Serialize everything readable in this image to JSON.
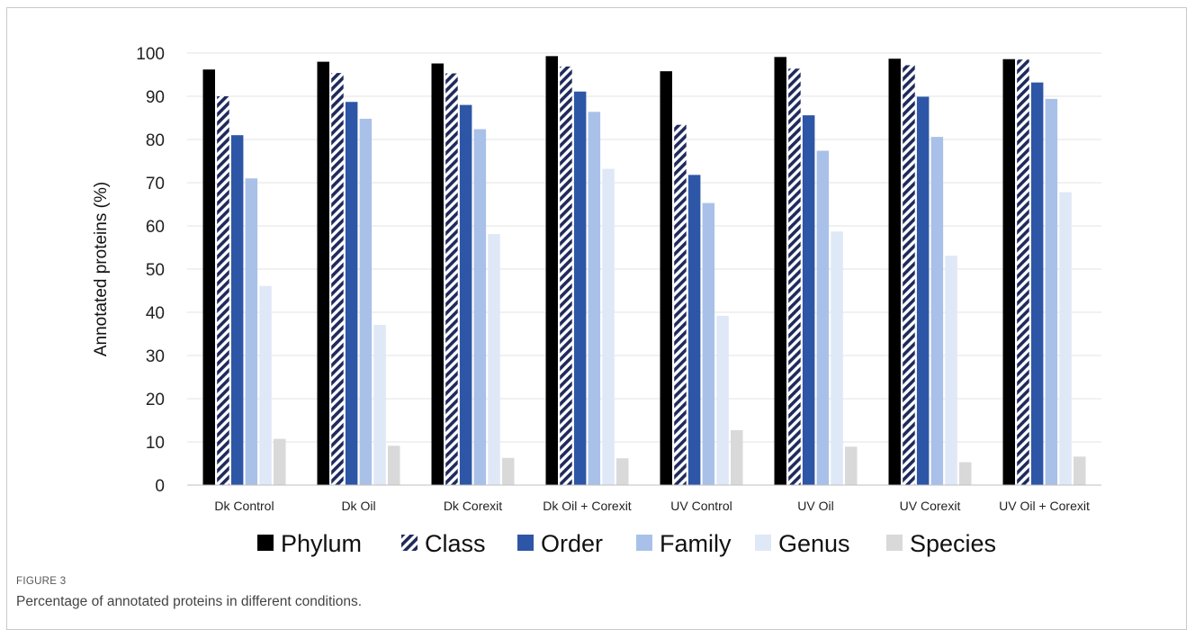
{
  "figure": {
    "label": "FIGURE 3",
    "caption": "Percentage of annotated proteins in different conditions."
  },
  "chart_data": {
    "type": "bar",
    "title": "",
    "xlabel": "",
    "ylabel": "Annotated proteins (%)",
    "ylim": [
      0,
      100
    ],
    "yticks": [
      0,
      10,
      20,
      30,
      40,
      50,
      60,
      70,
      80,
      90,
      100
    ],
    "grid": true,
    "legend_position": "bottom",
    "categories": [
      "Dk Control",
      "Dk Oil",
      "Dk Corexit",
      "Dk Oil + Corexit",
      "UV Control",
      "UV Oil",
      "UV Corexit",
      "UV Oil + Corexit"
    ],
    "series": [
      {
        "name": "Phylum",
        "color": "#000000",
        "pattern": "solid",
        "values": [
          96.2,
          98.0,
          97.6,
          99.3,
          95.8,
          99.1,
          98.7,
          98.6
        ]
      },
      {
        "name": "Class",
        "color": "#1f2a5c",
        "pattern": "diagonal-stripes",
        "values": [
          90.0,
          95.4,
          95.3,
          96.9,
          83.4,
          96.4,
          97.2,
          98.5
        ]
      },
      {
        "name": "Order",
        "color": "#2e56a6",
        "pattern": "solid",
        "values": [
          81.0,
          88.7,
          88.0,
          91.1,
          71.8,
          85.6,
          89.9,
          93.2
        ]
      },
      {
        "name": "Family",
        "color": "#a9c1e8",
        "pattern": "solid",
        "values": [
          71.0,
          84.8,
          82.4,
          86.4,
          65.3,
          77.4,
          80.6,
          89.4
        ]
      },
      {
        "name": "Genus",
        "color": "#dfe8f7",
        "pattern": "solid",
        "values": [
          46.1,
          37.1,
          58.1,
          73.2,
          39.2,
          58.7,
          53.1,
          67.8
        ]
      },
      {
        "name": "Species",
        "color": "#d9d9d9",
        "pattern": "solid",
        "values": [
          10.7,
          9.1,
          6.3,
          6.2,
          12.7,
          8.9,
          5.3,
          6.6
        ]
      }
    ]
  }
}
